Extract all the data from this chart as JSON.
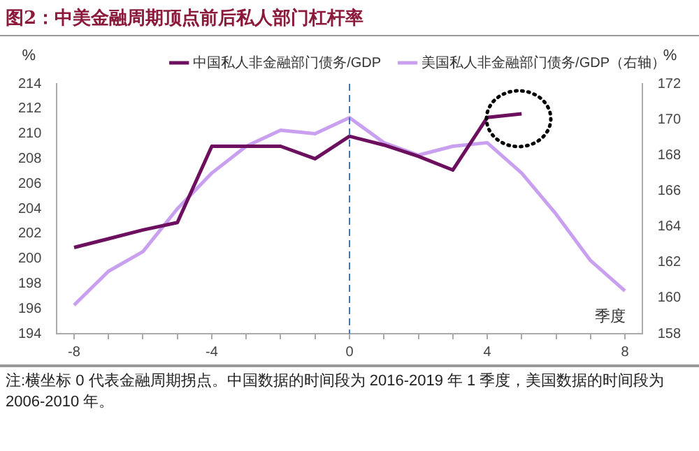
{
  "chart_data": {
    "type": "line",
    "title": "图2：中美金融周期顶点前后私人部门杠杆率",
    "xlabel": "季度",
    "ylabel": "%",
    "y2label": "%",
    "annotations": [
      "注:横坐标 0 代表金融周期拐点。中国数据的时间段为 2016-2019 年 1 季度，美国数据的时间段为 2006-2010 年。"
    ],
    "series": [
      {
        "name": "中国私人非金融部门债务/GDP",
        "color": "#6b0f5e",
        "x": [
          -8,
          -7,
          -6,
          -5,
          -4,
          -3,
          -2,
          -1,
          0,
          1,
          2,
          3,
          4,
          5
        ],
        "values": [
          200.9,
          201.6,
          202.3,
          202.9,
          209.0,
          209.0,
          209.0,
          208.0,
          209.8,
          209.1,
          208.2,
          207.1,
          211.3,
          211.6
        ]
      },
      {
        "name": "美国私人非金融部门债务/GDP（右轴）",
        "color": "#c9a0f0",
        "axis": "y2",
        "x": [
          -8,
          -7,
          -6,
          -5,
          -4,
          -3,
          -2,
          -1,
          0,
          1,
          2,
          3,
          4,
          5,
          6,
          7,
          8
        ],
        "values": [
          159.6,
          161.5,
          162.6,
          165.0,
          167.0,
          168.5,
          169.4,
          169.2,
          170.1,
          168.7,
          168.0,
          168.5,
          168.7,
          167.0,
          164.7,
          162.1,
          160.4
        ]
      }
    ],
    "xlim": [
      -8.5,
      8.5
    ],
    "xticks": [
      -8,
      {
        "value": -7,
        "label": null
      },
      {
        "value": -6,
        "label": null
      },
      {
        "value": -5,
        "label": null
      },
      -4,
      {
        "value": -3,
        "label": null
      },
      {
        "value": -2,
        "label": null
      },
      {
        "value": -1,
        "label": null
      },
      0,
      {
        "value": 1,
        "label": null
      },
      {
        "value": 2,
        "label": null
      },
      {
        "value": 3,
        "label": null
      },
      4,
      {
        "value": 5,
        "label": null
      },
      {
        "value": 6,
        "label": null
      },
      {
        "value": 7,
        "label": null
      },
      8
    ],
    "ylim": [
      194,
      214
    ],
    "yticks": [
      194,
      196,
      198,
      200,
      202,
      204,
      206,
      208,
      210,
      212,
      214
    ],
    "y2lim": [
      158,
      172
    ],
    "y2ticks": [
      158,
      160,
      162,
      164,
      166,
      168,
      170,
      172
    ],
    "ref_lines": [
      {
        "axis": "x",
        "value": 0,
        "color": "#4472c4",
        "line_style": "dashed"
      }
    ],
    "grid": false,
    "legend": "top",
    "marker": "none",
    "line_style": "solid"
  }
}
